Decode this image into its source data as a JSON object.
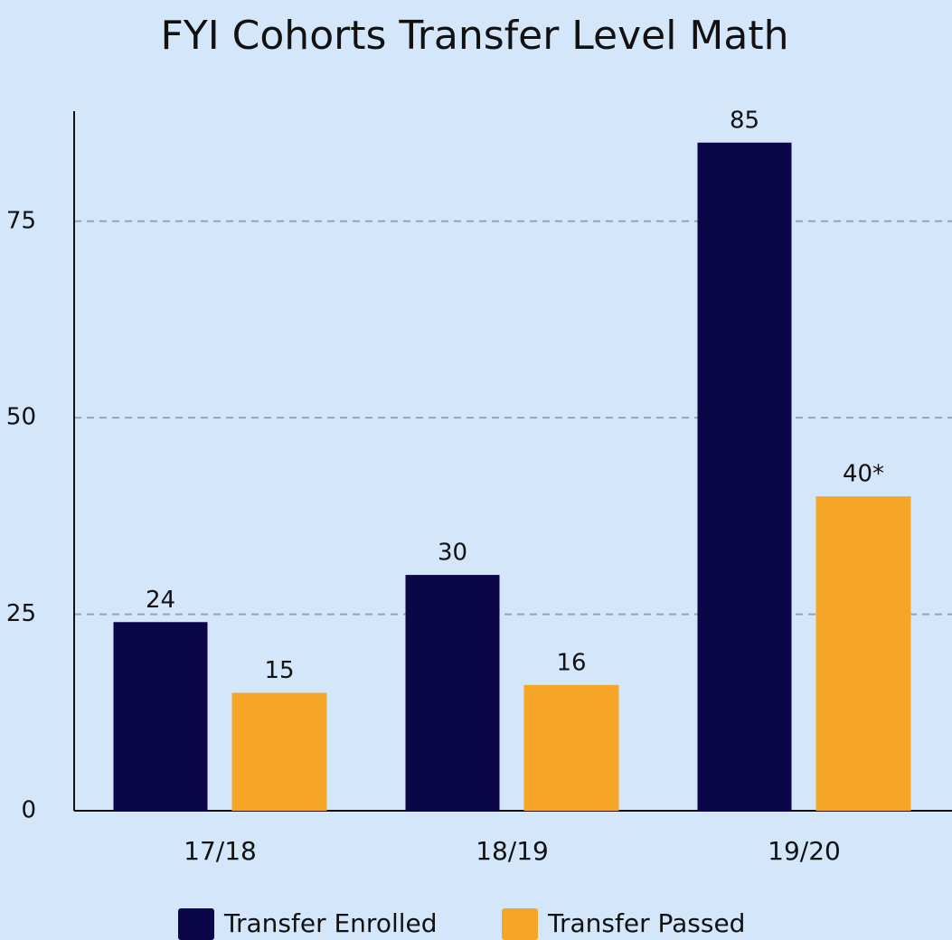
{
  "chart_data": {
    "type": "bar",
    "title": "FYI Cohorts Transfer Level Math",
    "categories": [
      "17/18",
      "18/19",
      "19/20"
    ],
    "series": [
      {
        "name": "Transfer Enrolled",
        "color": "#0b0647",
        "values": [
          24,
          30,
          85
        ]
      },
      {
        "name": "Transfer Passed",
        "color": "#f5a627",
        "values": [
          15,
          16,
          40
        ],
        "value_labels": [
          "15",
          "16",
          "40*"
        ]
      }
    ],
    "ylim": [
      0,
      89
    ],
    "yticks": [
      0,
      25,
      50,
      75
    ],
    "grid": true,
    "legend": "bottom"
  }
}
